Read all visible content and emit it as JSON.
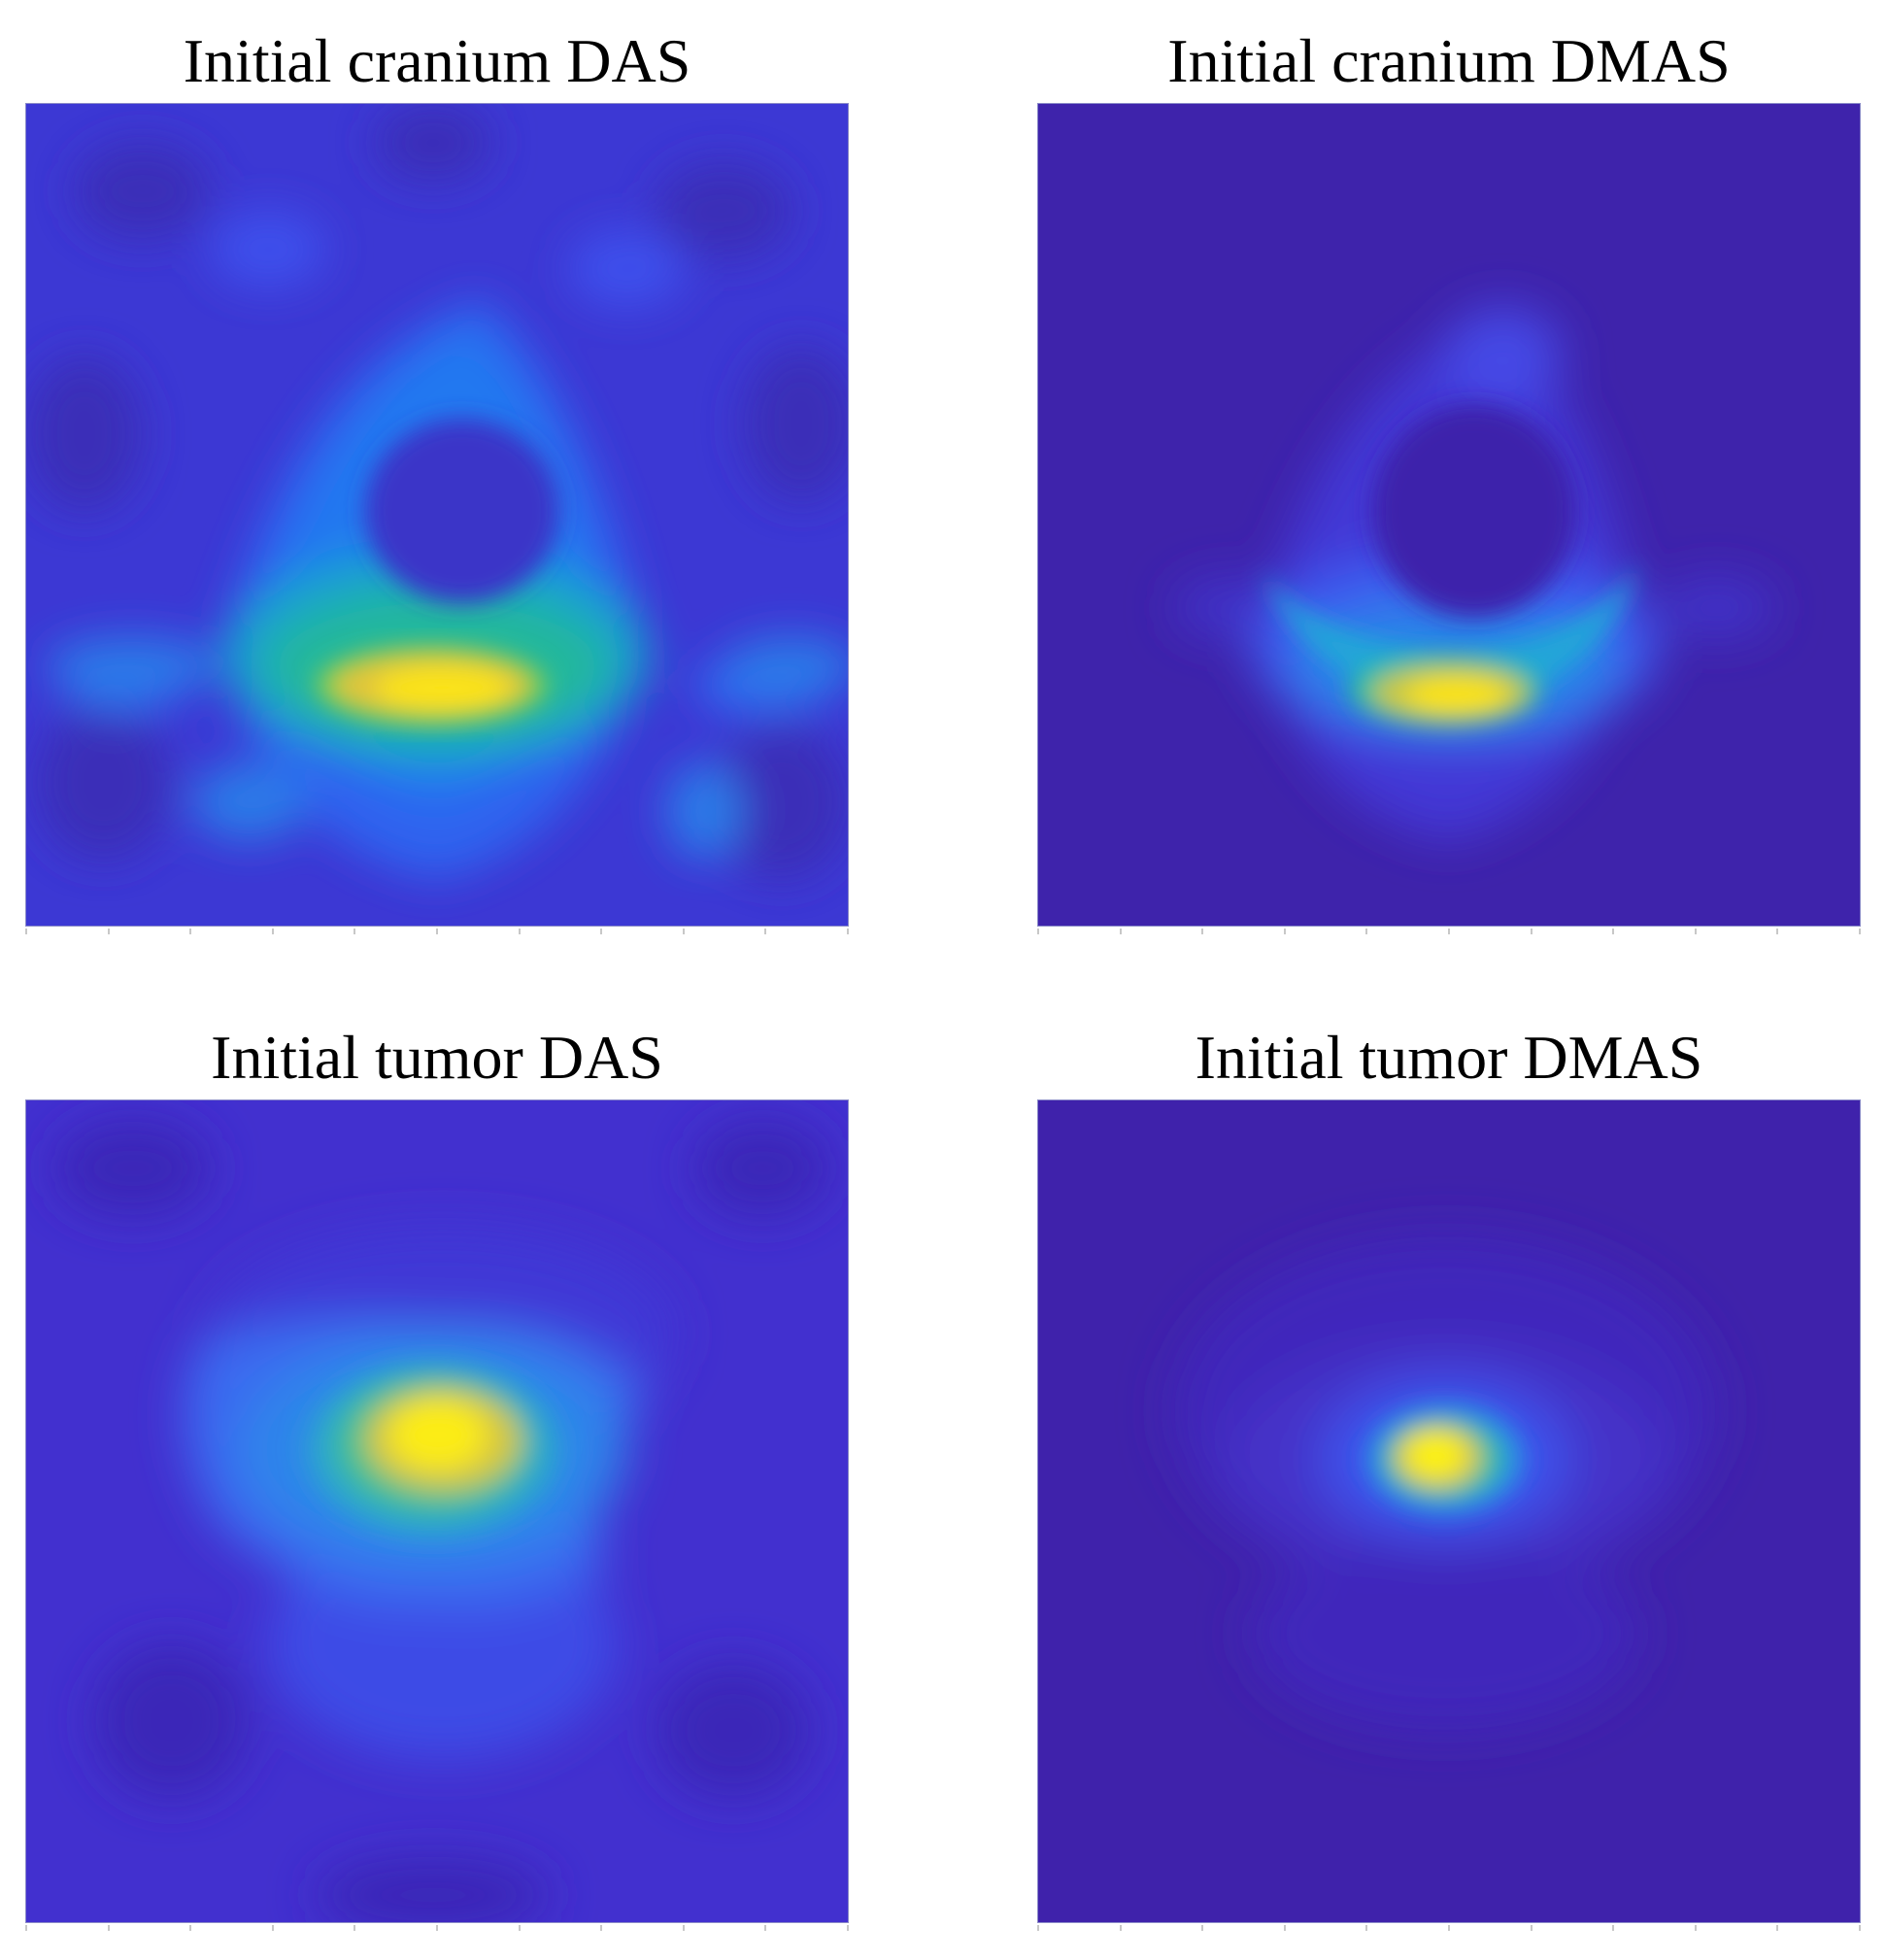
{
  "figure": {
    "panels": [
      {
        "id": "cranium-das",
        "title": "Initial cranium DAS"
      },
      {
        "id": "cranium-dmas",
        "title": "Initial cranium DMAS"
      },
      {
        "id": "tumor-das",
        "title": "Initial tumor DAS"
      },
      {
        "id": "tumor-dmas",
        "title": "Initial tumor DMAS"
      }
    ]
  },
  "chart_data": [
    {
      "type": "heatmap",
      "title": "Initial cranium DAS",
      "colormap": "parula",
      "colors": {
        "low": "#3e26a8",
        "mid_low": "#2f5df2",
        "mid": "#1ab5b8",
        "mid_high": "#8cc63f",
        "high": "#f9fb0e"
      },
      "x_ticks_unlabeled": 11,
      "feature": "ring with bright crescent at bottom of ring"
    },
    {
      "type": "heatmap",
      "title": "Initial cranium DMAS",
      "colormap": "parula",
      "colors": {
        "low": "#3e26a8",
        "mid_low": "#2f5df2",
        "mid": "#1ab5b8",
        "mid_high": "#8cc63f",
        "high": "#f9fb0e"
      },
      "x_ticks_unlabeled": 11,
      "feature": "ring with bright crescent at bottom of ring, lower background"
    },
    {
      "type": "heatmap",
      "title": "Initial tumor DAS",
      "colormap": "parula",
      "colors": {
        "low": "#3e26a8",
        "mid_low": "#2f5df2",
        "mid": "#1ab5b8",
        "mid_high": "#8cc63f",
        "high": "#f9fb0e"
      },
      "x_ticks_unlabeled": 11,
      "feature": "single bright spot near center"
    },
    {
      "type": "heatmap",
      "title": "Initial tumor DMAS",
      "colormap": "parula",
      "colors": {
        "low": "#3e26a8",
        "mid_low": "#2f5df2",
        "mid": "#1ab5b8",
        "mid_high": "#8cc63f",
        "high": "#f9fb0e"
      },
      "x_ticks_unlabeled": 11,
      "feature": "small bright spot near center, lower background"
    }
  ]
}
